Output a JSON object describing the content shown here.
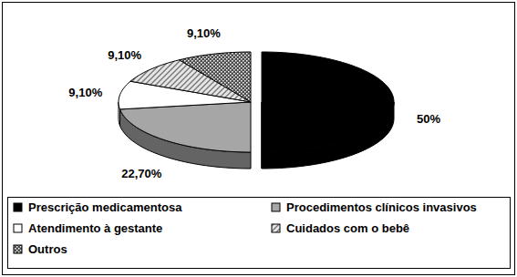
{
  "chart_data": {
    "type": "pie",
    "categories": [
      "Prescrição medicamentosa",
      "Procedimentos clínicos invasivos",
      "Atendimento à gestante",
      "Cuidados com o bebê",
      "Outros"
    ],
    "values": [
      50,
      22.7,
      9.1,
      9.1,
      9.1
    ],
    "value_labels": [
      "50%",
      "22,70%",
      "9,10%",
      "9,10%",
      "9,10%"
    ],
    "colors": [
      "#000000",
      "#a6a6a6",
      "#ffffff",
      "#e6e6e6",
      "#4d4d4d"
    ],
    "data_labels": true,
    "legend": "bottom"
  }
}
